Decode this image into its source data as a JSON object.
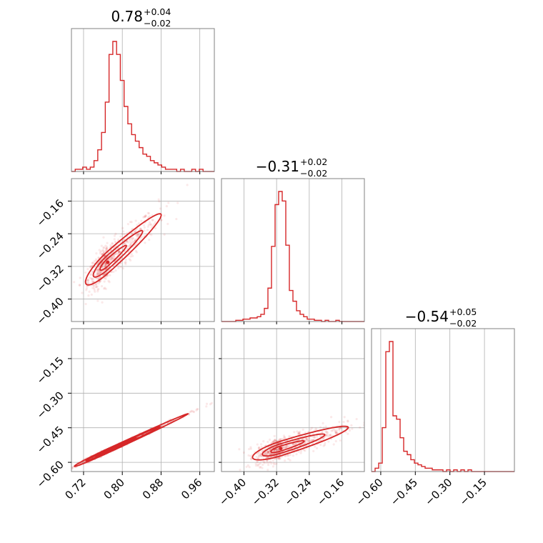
{
  "chart_data": {
    "type": "corner",
    "color": "#d62728",
    "titles": [
      {
        "value": "0.78",
        "upper": "+0.04",
        "lower": "−0.02"
      },
      {
        "value": "−0.31",
        "upper": "+0.02",
        "lower": "−0.02"
      },
      {
        "value": "−0.54",
        "upper": "+0.05",
        "lower": "−0.02"
      }
    ],
    "ranges": [
      [
        0.695,
        0.99
      ],
      [
        -0.455,
        -0.105
      ],
      [
        -0.64,
        -0.02
      ]
    ],
    "ticks": [
      [
        0.72,
        0.8,
        0.88,
        0.96
      ],
      [
        -0.4,
        -0.32,
        -0.24,
        -0.16
      ],
      [
        -0.6,
        -0.45,
        -0.3,
        -0.15
      ]
    ],
    "tick_labels": [
      [
        "0.72",
        "0.80",
        "0.88",
        "0.96"
      ],
      [
        "−0.40",
        "−0.32",
        "−0.24",
        "−0.16"
      ],
      [
        "−0.60",
        "−0.45",
        "−0.30",
        "−0.15"
      ]
    ],
    "grid": true,
    "histograms": [
      {
        "param": 0,
        "bin_edges": [
          0.695,
          0.99
        ],
        "counts": [
          0,
          1,
          1,
          2,
          1,
          2,
          5,
          10,
          18,
          32,
          54,
          60,
          54,
          42,
          30,
          22,
          17,
          14,
          11,
          8,
          7,
          5,
          4,
          3,
          2,
          1,
          1,
          1,
          0,
          1,
          0,
          0,
          1,
          0,
          1,
          0,
          0,
          0
        ]
      },
      {
        "param": 1,
        "bin_edges": [
          -0.455,
          -0.105
        ],
        "counts": [
          0,
          0,
          0,
          0,
          1,
          1,
          2,
          2,
          3,
          3,
          4,
          6,
          11,
          28,
          63,
          98,
          109,
          101,
          64,
          26,
          17,
          9,
          6,
          4,
          2,
          2,
          1,
          1,
          0,
          1,
          0,
          0,
          1,
          0,
          0,
          0,
          0,
          0,
          0,
          0
        ]
      },
      {
        "param": 2,
        "bin_edges": [
          -0.64,
          -0.02
        ],
        "counts": [
          0,
          2,
          5,
          26,
          71,
          77,
          33,
          31,
          20,
          12,
          10,
          7,
          5,
          4,
          3,
          2,
          2,
          1,
          1,
          1,
          0,
          1,
          0,
          1,
          0,
          1,
          0,
          1,
          0,
          0,
          0,
          0,
          0,
          0,
          0,
          0,
          0,
          0,
          0,
          0
        ]
      }
    ],
    "pairs": [
      {
        "x_param": 0,
        "y_param": 1,
        "peak": [
          0.77,
          -0.31
        ],
        "sigma": [
          0.02,
          0.03
        ],
        "correlation": 0.7
      },
      {
        "x_param": 0,
        "y_param": 2,
        "peak": [
          0.77,
          -0.55
        ],
        "sigma": [
          0.03,
          0.03
        ],
        "correlation": 0.97
      },
      {
        "x_param": 1,
        "y_param": 2,
        "peak": [
          -0.31,
          -0.54
        ],
        "sigma": [
          0.03,
          0.03
        ],
        "correlation": 0.55
      }
    ]
  }
}
